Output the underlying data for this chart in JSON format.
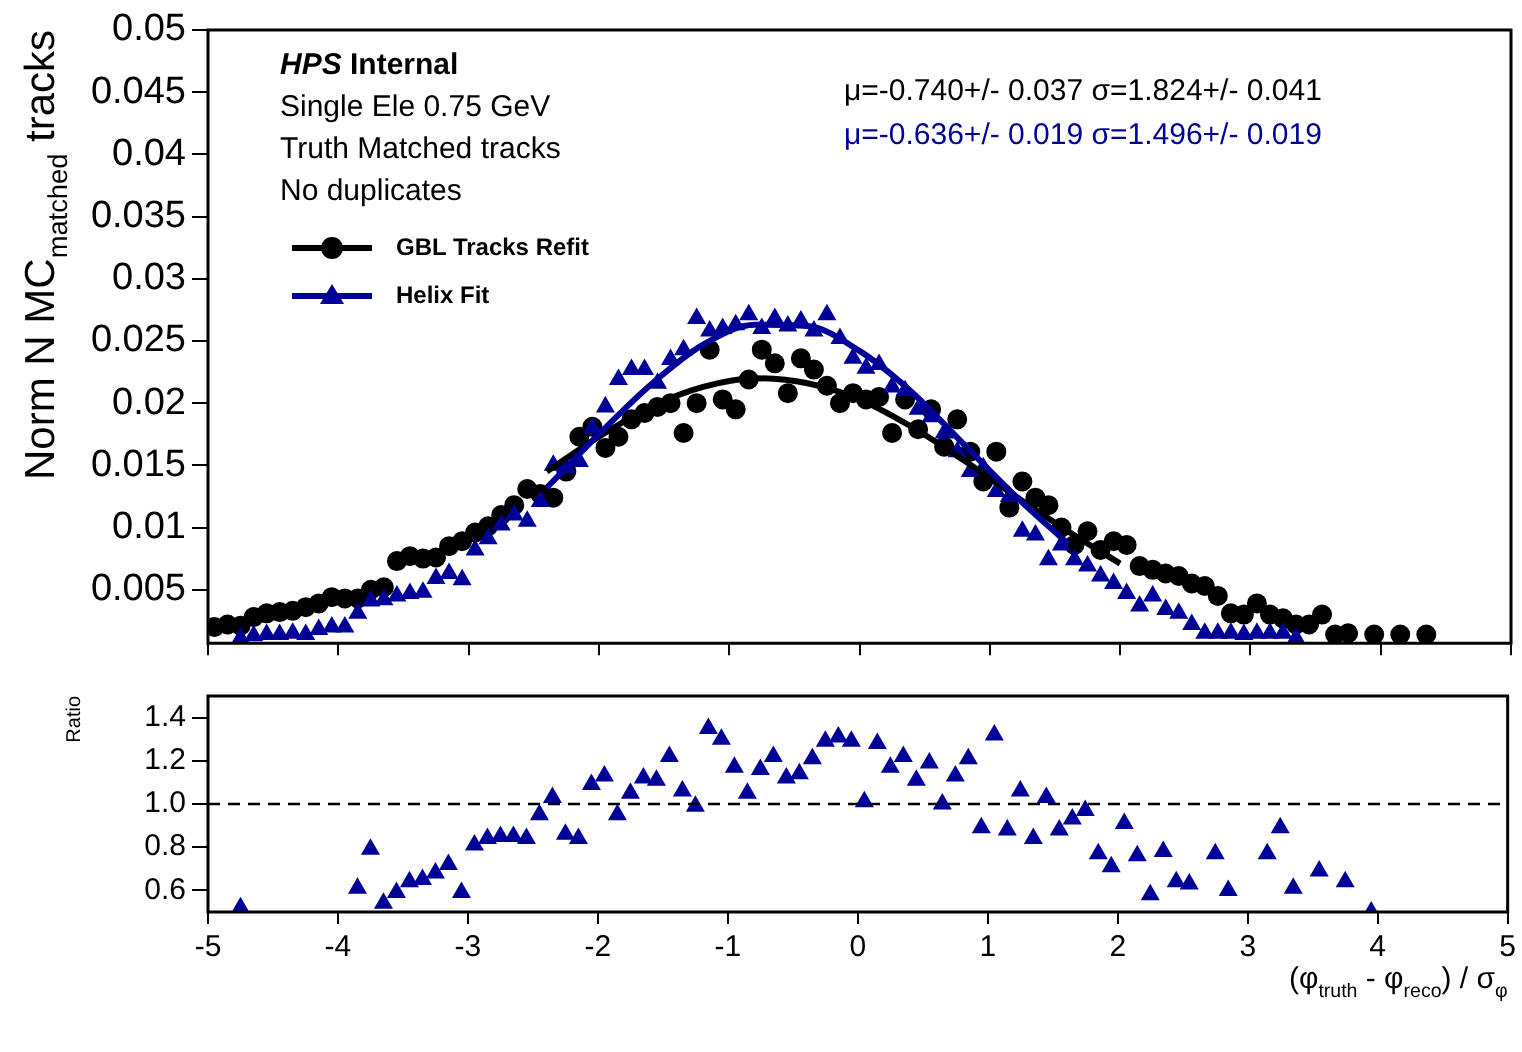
{
  "chart_data": [
    {
      "type": "scatter",
      "ylabel": "Norm N MC$_{matched}$ tracks",
      "annotations": [
        "HPS Internal",
        "Single Ele 0.75 GeV",
        "Truth Matched tracks",
        "No duplicates",
        "μ=-0.740+/- 0.037 σ=1.824+/- 0.041",
        "μ=-0.636+/- 0.019 σ=1.496+/- 0.019"
      ],
      "x": [
        -4.95,
        -4.85,
        -4.75,
        -4.65,
        -4.55,
        -4.45,
        -4.35,
        -4.25,
        -4.15,
        -4.05,
        -3.95,
        -3.85,
        -3.75,
        -3.65,
        -3.55,
        -3.45,
        -3.35,
        -3.25,
        -3.15,
        -3.05,
        -2.95,
        -2.85,
        -2.75,
        -2.65,
        -2.55,
        -2.45,
        -2.35,
        -2.25,
        -2.15,
        -2.05,
        -1.95,
        -1.85,
        -1.75,
        -1.65,
        -1.55,
        -1.45,
        -1.35,
        -1.25,
        -1.15,
        -1.05,
        -0.95,
        -0.85,
        -0.75,
        -0.65,
        -0.55,
        -0.45,
        -0.35,
        -0.25,
        -0.15,
        -0.05,
        0.05,
        0.15,
        0.25,
        0.35,
        0.45,
        0.55,
        0.65,
        0.75,
        0.85,
        0.95,
        1.05,
        1.15,
        1.25,
        1.35,
        1.45,
        1.55,
        1.65,
        1.75,
        1.85,
        1.95,
        2.05,
        2.15,
        2.25,
        2.35,
        2.45,
        2.55,
        2.65,
        2.75,
        2.85,
        2.95,
        3.05,
        3.15,
        3.25,
        3.35,
        3.45,
        3.55,
        3.65,
        3.75,
        3.85,
        3.95,
        4.05,
        4.15,
        4.25,
        4.35
      ],
      "series": [
        {
          "name": "GBL Tracks Refit",
          "type": "scatter",
          "marker": "circle",
          "color": "#000000",
          "values": [
            0.002,
            0.0022,
            0.0021,
            0.0028,
            0.0031,
            0.0032,
            0.0033,
            0.0036,
            0.0039,
            0.0044,
            0.0043,
            0.0043,
            0.005,
            0.0052,
            0.0073,
            0.0077,
            0.0075,
            0.0076,
            0.0085,
            0.0089,
            0.0096,
            0.0101,
            0.011,
            0.0118,
            0.0131,
            0.0127,
            0.0124,
            0.0145,
            0.0173,
            0.0181,
            0.0164,
            0.0173,
            0.0187,
            0.0192,
            0.0197,
            0.02,
            0.0176,
            0.02,
            0.0243,
            0.0203,
            0.0195,
            0.0219,
            0.0243,
            0.0232,
            0.0208,
            0.0236,
            0.0227,
            0.0214,
            0.02,
            0.0208,
            0.0203,
            0.0205,
            0.0176,
            0.0203,
            0.0179,
            0.0195,
            0.0165,
            0.0187,
            0.0161,
            0.0137,
            0.0161,
            0.0116,
            0.0137,
            0.0124,
            0.0118,
            0.01,
            0.0086,
            0.0097,
            0.0082,
            0.0089,
            0.0086,
            0.0069,
            0.0066,
            0.0063,
            0.0061,
            0.0055,
            0.0053,
            0.0045,
            0.0031,
            0.003,
            0.0039,
            0.003,
            0.0027,
            0.0022,
            0.0022,
            0.003,
            0.0014,
            0.0015,
            null,
            0.0014,
            null,
            0.0014,
            null,
            0.0014
          ]
        },
        {
          "name": "Helix Fit",
          "type": "scatter",
          "marker": "triangle",
          "color": "#000099",
          "values": [
            null,
            null,
            0.0011,
            0.0013,
            0.0014,
            0.0014,
            0.0015,
            0.0014,
            0.0018,
            0.002,
            0.002,
            0.0031,
            0.0041,
            0.0042,
            0.0045,
            0.0047,
            0.0048,
            0.0059,
            0.0063,
            0.0058,
            0.0082,
            0.0091,
            0.0102,
            0.011,
            0.0105,
            0.0121,
            0.015,
            0.0148,
            0.0153,
            0.018,
            0.0197,
            0.0219,
            0.0227,
            0.0227,
            0.0216,
            0.0235,
            0.0243,
            0.0268,
            0.0258,
            0.026,
            0.0263,
            0.0271,
            0.026,
            0.0268,
            0.0262,
            0.0266,
            0.0258,
            0.0271,
            0.0252,
            0.0236,
            0.0228,
            0.0231,
            0.0213,
            0.021,
            0.0195,
            0.0189,
            0.0176,
            0.0161,
            0.0145,
            0.0148,
            0.0129,
            0.0125,
            0.0097,
            0.0094,
            0.0074,
            0.0086,
            0.0074,
            0.0069,
            0.0061,
            0.0055,
            0.0047,
            0.0037,
            0.0045,
            0.0034,
            0.0031,
            0.0022,
            0.0015,
            0.0015,
            0.0015,
            0.0014,
            0.0015,
            0.0015,
            0.0015,
            0.0011,
            null,
            null,
            null,
            null,
            null,
            null,
            null,
            null,
            null,
            null
          ]
        },
        {
          "type": "line",
          "marker": "none",
          "color": "#000000",
          "x": [
            -2.4,
            -2.0,
            -1.6,
            -1.2,
            -0.8,
            -0.4,
            0,
            0.4,
            0.8,
            1.2,
            1.6,
            2.0
          ],
          "values": [
            0.0145,
            0.0173,
            0.0197,
            0.0213,
            0.022,
            0.0216,
            0.0203,
            0.0181,
            0.0154,
            0.0125,
            0.0097,
            0.0071
          ]
        },
        {
          "type": "line",
          "marker": "none",
          "color": "#000099",
          "x": [
            -2.4,
            -2.0,
            -1.6,
            -1.2,
            -0.8,
            -0.4,
            0,
            0.4,
            0.8,
            1.2,
            1.6
          ],
          "values": [
            0.0132,
            0.0175,
            0.0215,
            0.0247,
            0.0263,
            0.0262,
            0.0242,
            0.0209,
            0.0167,
            0.0125,
            0.0087
          ]
        }
      ],
      "xlim": [
        -5,
        5
      ],
      "xticks": [
        -5,
        -4,
        -3,
        -2,
        -1,
        0,
        1,
        2,
        3,
        4,
        5
      ],
      "ylim": [
        0.0007,
        0.05
      ],
      "yticks": [
        0.005,
        0.01,
        0.015,
        0.02,
        0.025,
        0.03,
        0.035,
        0.04,
        0.045,
        0.05
      ],
      "tick_labels": "y",
      "grid": false,
      "legend": "top left"
    },
    {
      "type": "scatter",
      "ylabel": "Ratio",
      "xlabel": "(φ$_{truth}$ - φ$_{reco}$) / σ$_{φ}$",
      "series": [
        {
          "type": "scatter",
          "marker": "triangle",
          "color": "#000099",
          "x": [
            -4.75,
            -3.85,
            -3.75,
            -3.65,
            -3.55,
            -3.45,
            -3.35,
            -3.25,
            -3.15,
            -3.05,
            -2.95,
            -2.85,
            -2.75,
            -2.65,
            -2.55,
            -2.45,
            -2.35,
            -2.25,
            -2.15,
            -2.05,
            -1.95,
            -1.85,
            -1.75,
            -1.65,
            -1.55,
            -1.45,
            -1.35,
            -1.25,
            -1.15,
            -1.05,
            -0.95,
            -0.85,
            -0.75,
            -0.65,
            -0.55,
            -0.45,
            -0.35,
            -0.25,
            -0.15,
            -0.05,
            0.05,
            0.15,
            0.25,
            0.35,
            0.45,
            0.55,
            0.65,
            0.75,
            0.85,
            0.95,
            1.05,
            1.15,
            1.25,
            1.35,
            1.45,
            1.55,
            1.65,
            1.75,
            1.85,
            1.95,
            2.05,
            2.15,
            2.25,
            2.35,
            2.45,
            2.55,
            2.75,
            2.85,
            3.15,
            3.25,
            3.35,
            3.55,
            3.75,
            3.95
          ],
          "values": [
            0.52,
            0.61,
            0.79,
            0.54,
            0.59,
            0.64,
            0.65,
            0.68,
            0.72,
            0.59,
            0.81,
            0.84,
            0.85,
            0.85,
            0.84,
            0.95,
            1.03,
            0.86,
            0.84,
            1.09,
            1.13,
            0.95,
            1.05,
            1.12,
            1.11,
            1.22,
            1.06,
            0.99,
            1.35,
            1.3,
            1.17,
            1.05,
            1.16,
            1.22,
            1.12,
            1.14,
            1.21,
            1.29,
            1.31,
            1.29,
            1.01,
            1.28,
            1.17,
            1.22,
            1.11,
            1.19,
            1.0,
            1.13,
            1.21,
            0.89,
            1.32,
            0.88,
            1.06,
            0.84,
            1.03,
            0.88,
            0.93,
            0.97,
            0.77,
            0.71,
            0.91,
            0.76,
            0.58,
            0.78,
            0.64,
            0.63,
            0.77,
            0.6,
            0.77,
            0.89,
            0.61,
            0.69,
            0.64,
            0.5
          ]
        }
      ],
      "xlim": [
        -5,
        5
      ],
      "xticks": [
        -5,
        -4,
        -3,
        -2,
        -1,
        0,
        1,
        2,
        3,
        4,
        5
      ],
      "ylim": [
        0.5,
        1.5
      ],
      "yticks": [
        0.6,
        0.8,
        {
          "value": 1,
          "label": "1.0"
        },
        1.2,
        1.4
      ],
      "ref_lines": [
        {
          "axis": "y",
          "value": 1,
          "line_style": "dashed",
          "color": "#000000"
        }
      ],
      "grid": false,
      "legend": false
    }
  ]
}
